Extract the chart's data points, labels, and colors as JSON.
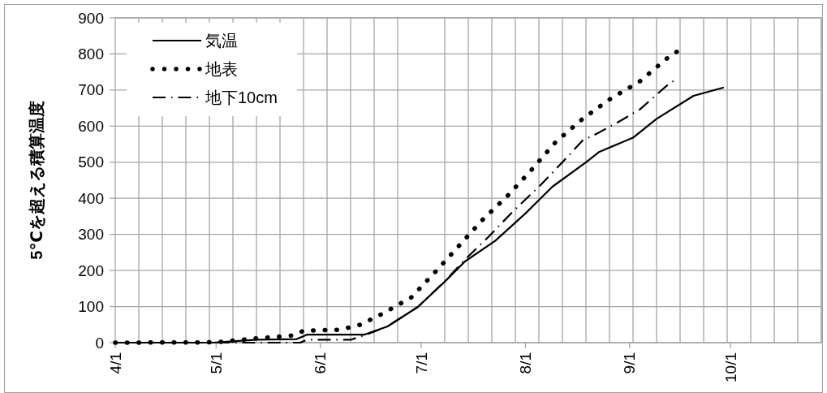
{
  "chart_data": {
    "type": "line",
    "ylabel": "5℃を超える積算温度",
    "xlim": [
      "--04-01",
      "--10-28"
    ],
    "xticks": [
      {
        "value": "--04-01",
        "label": "4/1"
      },
      {
        "value": "--05-01",
        "label": "5/1"
      },
      {
        "value": "--06-01",
        "label": "6/1"
      },
      {
        "value": "--07-01",
        "label": "7/1"
      },
      {
        "value": "--08-01",
        "label": "8/1"
      },
      {
        "value": "--09-01",
        "label": "9/1"
      },
      {
        "value": "--10-01",
        "label": "10/1"
      },
      {
        "value": "--04-08",
        "label": null
      },
      {
        "value": "--04-15",
        "label": null
      },
      {
        "value": "--04-22",
        "label": null
      },
      {
        "value": "--04-29",
        "label": null
      },
      {
        "value": "--05-06",
        "label": null
      },
      {
        "value": "--05-13",
        "label": null
      },
      {
        "value": "--05-20",
        "label": null
      },
      {
        "value": "--05-27",
        "label": null
      },
      {
        "value": "--06-03",
        "label": null
      },
      {
        "value": "--06-10",
        "label": null
      },
      {
        "value": "--06-17",
        "label": null
      },
      {
        "value": "--06-24",
        "label": null
      },
      {
        "value": "--07-08",
        "label": null
      },
      {
        "value": "--07-15",
        "label": null
      },
      {
        "value": "--07-22",
        "label": null
      },
      {
        "value": "--07-29",
        "label": null
      },
      {
        "value": "--08-05",
        "label": null
      },
      {
        "value": "--08-12",
        "label": null
      },
      {
        "value": "--08-19",
        "label": null
      },
      {
        "value": "--08-26",
        "label": null
      },
      {
        "value": "--09-02",
        "label": null
      },
      {
        "value": "--09-09",
        "label": null
      },
      {
        "value": "--09-16",
        "label": null
      },
      {
        "value": "--09-23",
        "label": null
      },
      {
        "value": "--09-30",
        "label": null
      },
      {
        "value": "--10-07",
        "label": null
      },
      {
        "value": "--10-14",
        "label": null
      },
      {
        "value": "--10-21",
        "label": null
      },
      {
        "value": "--10-28",
        "label": null
      }
    ],
    "ylim": [
      0,
      900
    ],
    "yticks": [
      0,
      100,
      200,
      300,
      400,
      500,
      600,
      700,
      800,
      900
    ],
    "grid": true,
    "legend": "top left",
    "series": [
      {
        "name": "気温",
        "color": "#000000",
        "line_style": "solid",
        "x": [
          "--04-01",
          "--04-30",
          "--05-05",
          "--05-13",
          "--05-25",
          "--05-28",
          "--06-12",
          "--06-14",
          "--06-21",
          "--06-30",
          "--07-08",
          "--07-14",
          "--07-23",
          "--08-01",
          "--08-09",
          "--08-19",
          "--08-23",
          "--09-02",
          "--09-09",
          "--09-20",
          "--09-29"
        ],
        "values": [
          0,
          0,
          3,
          8,
          10,
          22,
          22,
          22,
          45,
          99,
          169,
          225,
          282,
          358,
          432,
          500,
          529,
          568,
          620,
          684,
          707
        ]
      },
      {
        "name": "地表",
        "color": "#000000",
        "line_style": "dotted",
        "x": [
          "--04-01",
          "--05-01",
          "--05-13",
          "--05-24",
          "--05-27",
          "--06-07",
          "--06-13",
          "--06-19",
          "--06-28",
          "--07-05",
          "--07-12",
          "--07-19",
          "--07-27",
          "--08-03",
          "--08-10",
          "--08-18",
          "--08-26",
          "--09-04",
          "--09-12",
          "--09-15"
        ],
        "values": [
          0,
          1,
          12,
          20,
          33,
          36,
          50,
          78,
          125,
          194,
          266,
          338,
          410,
          481,
          556,
          620,
          674,
          724,
          787,
          806
        ]
      },
      {
        "name": "地下10cm",
        "color": "#000000",
        "line_style": "dashdot",
        "x": [
          "--04-01",
          "--05-26",
          "--05-28",
          "--06-10",
          "--06-14",
          "--06-21",
          "--06-30",
          "--07-08",
          "--07-14",
          "--07-21",
          "--07-28",
          "--08-05",
          "--08-12",
          "--08-18",
          "--08-23",
          "--08-28",
          "--09-04",
          "--09-12",
          "--09-14"
        ],
        "values": [
          0,
          0,
          8,
          8,
          20,
          45,
          99,
          170,
          230,
          293,
          361,
          432,
          500,
          560,
          583,
          608,
          646,
          712,
          725
        ]
      }
    ]
  }
}
